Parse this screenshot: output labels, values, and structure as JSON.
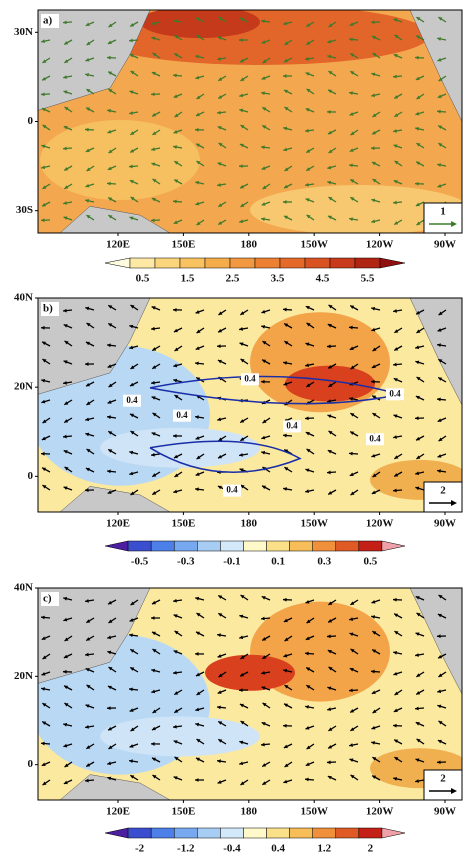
{
  "panels": [
    {
      "label": "a)",
      "yticks": [
        "30N",
        "0",
        "30S"
      ],
      "xticks": [
        "120E",
        "150E",
        "180",
        "150W",
        "120W",
        "90W"
      ],
      "reference_vector": "1",
      "background": "#f3a850",
      "colorbar": {
        "ticks": [
          0.5,
          1.5,
          2.5,
          3.5,
          4.5,
          5.5
        ],
        "colors": [
          "#fffbe0",
          "#fde9a4",
          "#fbd57c",
          "#f8c260",
          "#f5ad4c",
          "#f19840",
          "#ec8134",
          "#e56a2a",
          "#d95222",
          "#c83a1a",
          "#b02412",
          "#901010"
        ]
      }
    },
    {
      "label": "b)",
      "yticks": [
        "40N",
        "20N",
        "0"
      ],
      "xticks": [
        "120E",
        "150E",
        "180",
        "150W",
        "120W",
        "90W"
      ],
      "reference_vector": "2",
      "background": "#fbe9a0",
      "contour_labels": [
        "0.4",
        "0.4",
        "0.4",
        "0.4",
        "0.4",
        "0.4",
        "0.4"
      ],
      "colorbar": {
        "ticks": [
          -0.5,
          -0.3,
          -0.1,
          0.1,
          0.3,
          0.5
        ],
        "colors": [
          "#4b1fa0",
          "#3a4fd0",
          "#4c80e8",
          "#78a8f0",
          "#a8cdf5",
          "#d3e8f8",
          "#fff8c8",
          "#fbe08a",
          "#f7bd58",
          "#f0903a",
          "#e05a26",
          "#c42018",
          "#f0a0a8"
        ]
      }
    },
    {
      "label": "c)",
      "yticks": [
        "40N",
        "20N",
        "0"
      ],
      "xticks": [
        "120E",
        "150E",
        "180",
        "150W",
        "120W",
        "90W"
      ],
      "reference_vector": "2",
      "background": "#fbe9a0",
      "colorbar": {
        "ticks": [
          -2,
          -1.2,
          -0.4,
          0.4,
          1.2,
          2
        ],
        "colors": [
          "#4b1fa0",
          "#3a4fd0",
          "#4c80e8",
          "#78a8f0",
          "#a8cdf5",
          "#d3e8f8",
          "#fff8c8",
          "#fbe08a",
          "#f7bd58",
          "#f0903a",
          "#e05a26",
          "#c42018",
          "#f0a0a8"
        ]
      }
    }
  ]
}
